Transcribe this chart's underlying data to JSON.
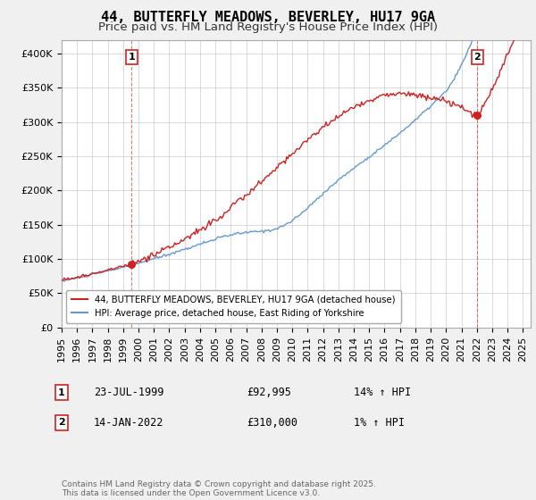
{
  "title": "44, BUTTERFLY MEADOWS, BEVERLEY, HU17 9GA",
  "subtitle": "Price paid vs. HM Land Registry's House Price Index (HPI)",
  "legend_line1": "44, BUTTERFLY MEADOWS, BEVERLEY, HU17 9GA (detached house)",
  "legend_line2": "HPI: Average price, detached house, East Riding of Yorkshire",
  "sale1_date": "23-JUL-1999",
  "sale1_price": "£92,995",
  "sale1_hpi": "14% ↑ HPI",
  "sale1_year": 1999.56,
  "sale1_value": 92995,
  "sale2_date": "14-JAN-2022",
  "sale2_price": "£310,000",
  "sale2_hpi": "1% ↑ HPI",
  "sale2_year": 2022.04,
  "sale2_value": 310000,
  "red_color": "#cc2222",
  "blue_color": "#6699cc",
  "background_color": "#f0f0f0",
  "plot_bg_color": "#ffffff",
  "grid_color": "#cccccc",
  "ylim_max": 420000,
  "xlim_start": 1995.0,
  "xlim_end": 2025.5,
  "footnote": "Contains HM Land Registry data © Crown copyright and database right 2025.\nThis data is licensed under the Open Government Licence v3.0.",
  "title_fontsize": 11,
  "subtitle_fontsize": 9.5,
  "tick_fontsize": 8
}
